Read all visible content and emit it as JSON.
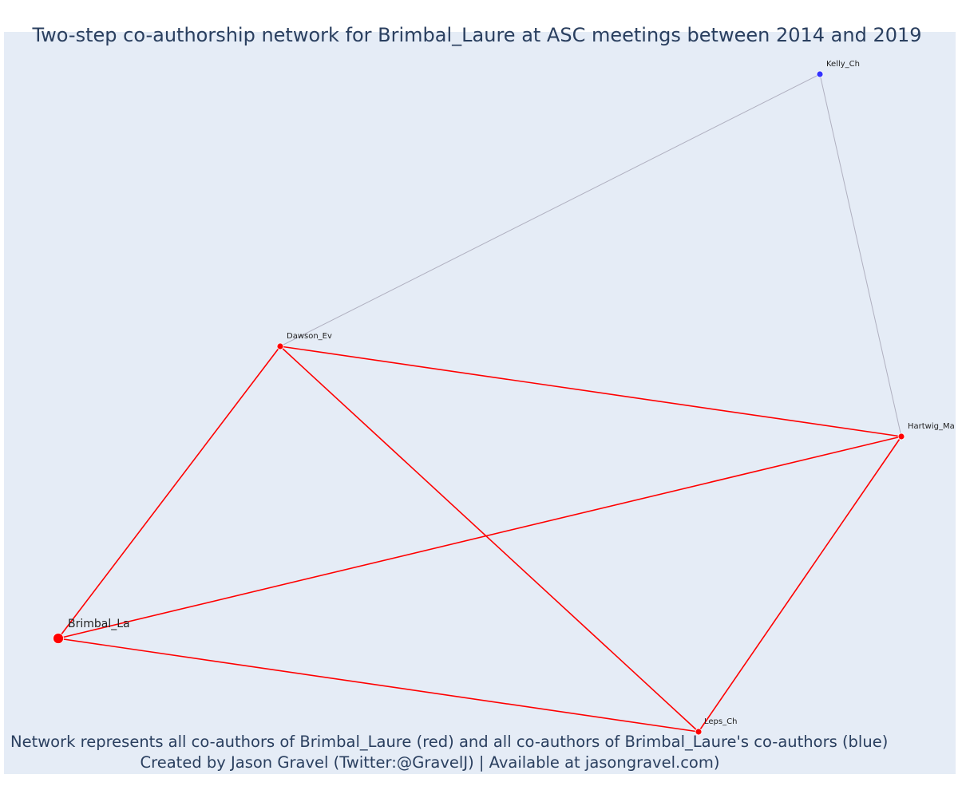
{
  "title": "Two-step co-authorship network for Brimbal_Laure at ASC meetings between 2014 and 2019",
  "caption": {
    "line1": "Network represents all co-authors of Brimbal_Laure (red) and all co-authors of Brimbal_Laure's co-authors (blue)",
    "line2": "Created by Jason Gravel (Twitter:@GravelJ) | Available at jasongravel.com)"
  },
  "colors": {
    "background": "#e5ecf6",
    "first_degree": "#ff0000",
    "second_degree": "#3333ff",
    "second_degree_edge": "#b0b0c0",
    "text": "#2a3f5f"
  },
  "nodes": [
    {
      "id": "brimbal",
      "label": "Brimbal_La",
      "group": "focal"
    },
    {
      "id": "dawson",
      "label": "Dawson_Ev",
      "group": "first"
    },
    {
      "id": "hartwig",
      "label": "Hartwig_Ma",
      "group": "first"
    },
    {
      "id": "leps",
      "label": "Leps_Ch",
      "group": "first"
    },
    {
      "id": "kelly",
      "label": "Kelly_Ch",
      "group": "second"
    }
  ],
  "edges": [
    {
      "source": "brimbal",
      "target": "dawson",
      "type": "first"
    },
    {
      "source": "brimbal",
      "target": "hartwig",
      "type": "first"
    },
    {
      "source": "brimbal",
      "target": "leps",
      "type": "first"
    },
    {
      "source": "dawson",
      "target": "hartwig",
      "type": "first"
    },
    {
      "source": "dawson",
      "target": "leps",
      "type": "first"
    },
    {
      "source": "hartwig",
      "target": "leps",
      "type": "first"
    },
    {
      "source": "dawson",
      "target": "kelly",
      "type": "second"
    },
    {
      "source": "hartwig",
      "target": "kelly",
      "type": "second"
    }
  ]
}
